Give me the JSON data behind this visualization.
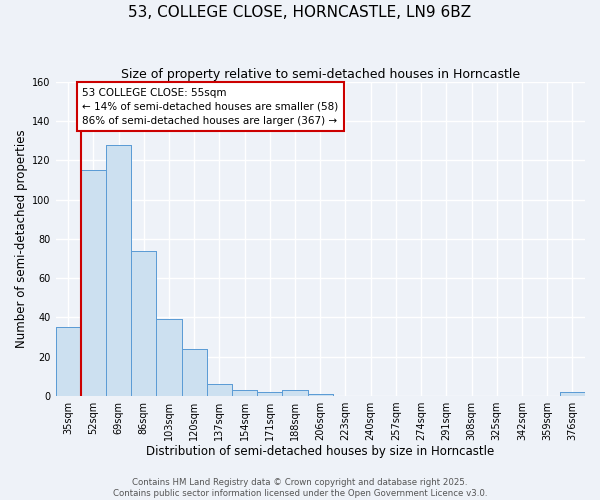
{
  "title": "53, COLLEGE CLOSE, HORNCASTLE, LN9 6BZ",
  "subtitle": "Size of property relative to semi-detached houses in Horncastle",
  "xlabel": "Distribution of semi-detached houses by size in Horncastle",
  "ylabel": "Number of semi-detached properties",
  "bin_labels": [
    "35sqm",
    "52sqm",
    "69sqm",
    "86sqm",
    "103sqm",
    "120sqm",
    "137sqm",
    "154sqm",
    "171sqm",
    "188sqm",
    "206sqm",
    "223sqm",
    "240sqm",
    "257sqm",
    "274sqm",
    "291sqm",
    "308sqm",
    "325sqm",
    "342sqm",
    "359sqm",
    "376sqm"
  ],
  "bar_values": [
    35,
    115,
    128,
    74,
    39,
    24,
    6,
    3,
    2,
    3,
    1,
    0,
    0,
    0,
    0,
    0,
    0,
    0,
    0,
    0,
    2
  ],
  "bar_color": "#cce0f0",
  "bar_edgecolor": "#5b9bd5",
  "property_size": 55,
  "property_label": "53 COLLEGE CLOSE: 55sqm",
  "pct_smaller": 14,
  "pct_larger": 86,
  "n_smaller": 58,
  "n_larger": 367,
  "annotation_box_color": "#ffffff",
  "annotation_box_edgecolor": "#cc0000",
  "vline_color": "#cc0000",
  "ylim": [
    0,
    160
  ],
  "yticks": [
    0,
    20,
    40,
    60,
    80,
    100,
    120,
    140,
    160
  ],
  "footer_line1": "Contains HM Land Registry data © Crown copyright and database right 2025.",
  "footer_line2": "Contains public sector information licensed under the Open Government Licence v3.0.",
  "background_color": "#eef2f8",
  "grid_color": "#ffffff",
  "title_fontsize": 11,
  "subtitle_fontsize": 9,
  "axis_label_fontsize": 8.5,
  "tick_fontsize": 7,
  "footer_fontsize": 6.2
}
